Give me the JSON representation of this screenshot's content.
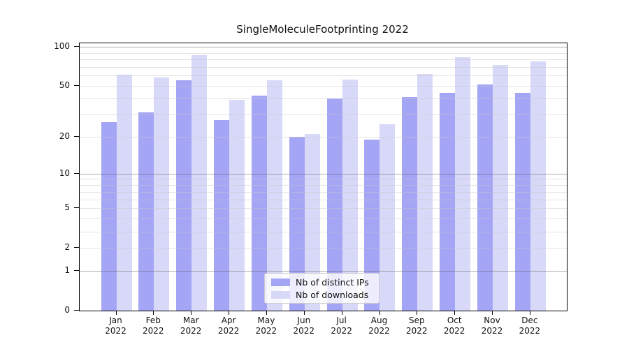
{
  "chart_data": {
    "type": "bar",
    "title": "SingleMoleculeFootprinting 2022",
    "year_label": "2022",
    "categories": [
      "Jan",
      "Feb",
      "Mar",
      "Apr",
      "May",
      "Jun",
      "Jul",
      "Aug",
      "Sep",
      "Oct",
      "Nov",
      "Dec"
    ],
    "series": [
      {
        "name": "Nb of distinct IPs",
        "color": "#a5a5f5",
        "values": [
          26,
          31,
          55,
          27,
          42,
          20,
          40,
          19,
          41,
          44,
          51,
          44
        ]
      },
      {
        "name": "Nb of downloads",
        "color": "#d8d8f9",
        "values": [
          61,
          58,
          86,
          39,
          55,
          21,
          56,
          25,
          62,
          83,
          73,
          77
        ]
      }
    ],
    "yscale": "log1p",
    "ylim": [
      0,
      111
    ],
    "y_tick_labels": [
      0,
      1,
      2,
      5,
      10,
      20,
      50,
      100
    ],
    "y_major_gridlines": [
      1,
      10,
      100
    ],
    "y_minor_gridlines": [
      2,
      3,
      4,
      5,
      6,
      7,
      8,
      9,
      20,
      30,
      40,
      50,
      60,
      70,
      80,
      90
    ],
    "grid": true,
    "legend_position": "lower center",
    "xlabel": "",
    "ylabel": ""
  }
}
